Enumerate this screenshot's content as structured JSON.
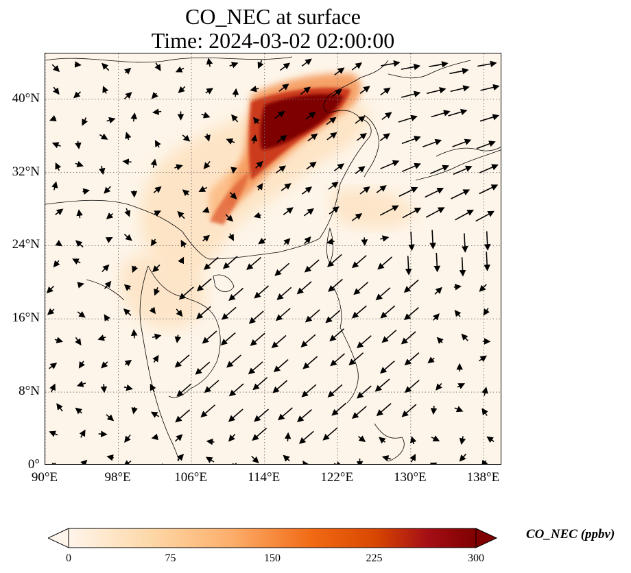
{
  "title": {
    "line1": "CO_NEC at surface",
    "line2": "Time: 2024-03-02 02:00:00"
  },
  "map": {
    "extent": {
      "lon_min": 90,
      "lon_max": 140,
      "lat_min": 0,
      "lat_max": 45
    },
    "gridlines": "dotted",
    "lat_ticks": [
      {
        "value": 40,
        "label": "40°N"
      },
      {
        "value": 32,
        "label": "32°N"
      },
      {
        "value": 24,
        "label": "24°N"
      },
      {
        "value": 16,
        "label": "16°N"
      },
      {
        "value": 8,
        "label": "8°N"
      },
      {
        "value": 0,
        "label": "0°"
      }
    ],
    "lon_ticks": [
      {
        "value": 90,
        "label": "90°E"
      },
      {
        "value": 98,
        "label": "98°E"
      },
      {
        "value": 106,
        "label": "106°E"
      },
      {
        "value": 114,
        "label": "114°E"
      },
      {
        "value": 122,
        "label": "122°E"
      },
      {
        "value": 130,
        "label": "130°E"
      },
      {
        "value": 138,
        "label": "138°E"
      }
    ],
    "background_color": "#fdf5e9",
    "overlay": "wind vectors"
  },
  "colorbar": {
    "label": "CO_NEC (ppbv)",
    "ticks": [
      {
        "value": 0,
        "label": "0"
      },
      {
        "value": 75,
        "label": "75"
      },
      {
        "value": 150,
        "label": "150"
      },
      {
        "value": 225,
        "label": "225"
      },
      {
        "value": 300,
        "label": "300"
      }
    ],
    "range": [
      0,
      300
    ],
    "extend": "both",
    "colormap": [
      "#fff5eb",
      "#fdd8a8",
      "#fdae6b",
      "#f16913",
      "#d94801",
      "#a50f15",
      "#7f0000"
    ]
  }
}
